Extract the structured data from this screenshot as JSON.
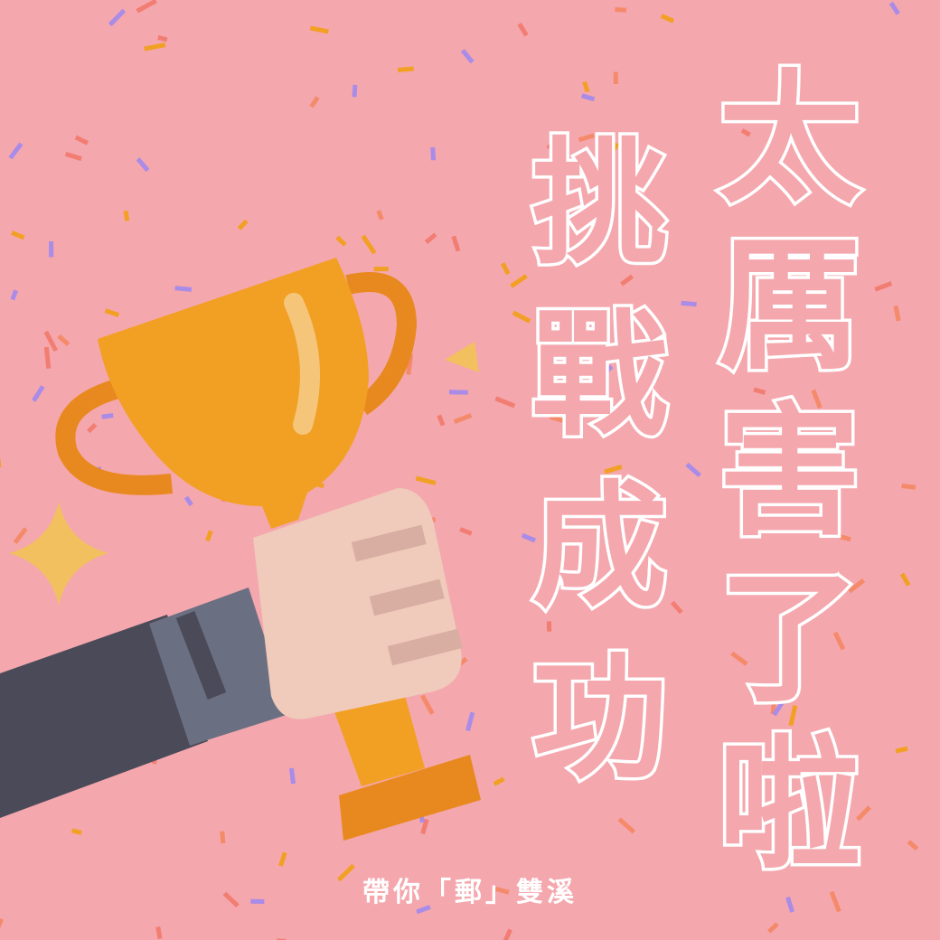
{
  "headline": "太厲害了啦",
  "subline": "挑戰成功",
  "footer": "帶你「郵」雙溪"
}
